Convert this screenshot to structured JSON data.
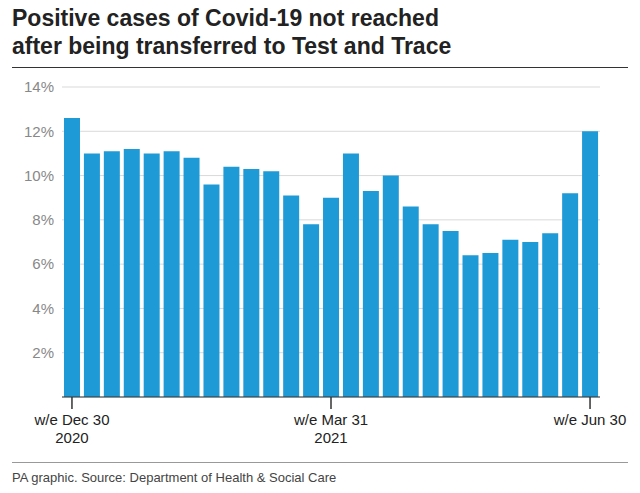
{
  "chart_data": {
    "type": "bar",
    "title": "Positive cases of Covid-19 not reached\nafter being transferred to Test and Trace",
    "source": "PA graphic. Source: Department of Health & Social Care",
    "categories": [
      "w/e Dec 30\n2020",
      null,
      null,
      null,
      null,
      null,
      null,
      null,
      null,
      null,
      null,
      null,
      null,
      "w/e Mar 31\n2021",
      null,
      null,
      null,
      null,
      null,
      null,
      null,
      null,
      null,
      null,
      null,
      null,
      "w/e Jun 30"
    ],
    "values": [
      12.6,
      11.0,
      11.1,
      11.2,
      11.0,
      11.1,
      10.8,
      9.6,
      10.4,
      10.3,
      10.2,
      9.1,
      7.8,
      9.0,
      11.0,
      9.3,
      10.0,
      8.6,
      7.8,
      7.5,
      6.4,
      6.5,
      7.1,
      7.0,
      7.4,
      9.2,
      12.0
    ],
    "color": "#1e9ad6",
    "ylim": [
      0,
      14
    ],
    "yticks": [
      {
        "value": 2,
        "label": "2%"
      },
      {
        "value": 4,
        "label": "4%"
      },
      {
        "value": 6,
        "label": "6%"
      },
      {
        "value": 8,
        "label": "8%"
      },
      {
        "value": 10,
        "label": "10%"
      },
      {
        "value": 12,
        "label": "12%"
      },
      {
        "value": 14,
        "label": "14%"
      }
    ],
    "grid": true
  }
}
